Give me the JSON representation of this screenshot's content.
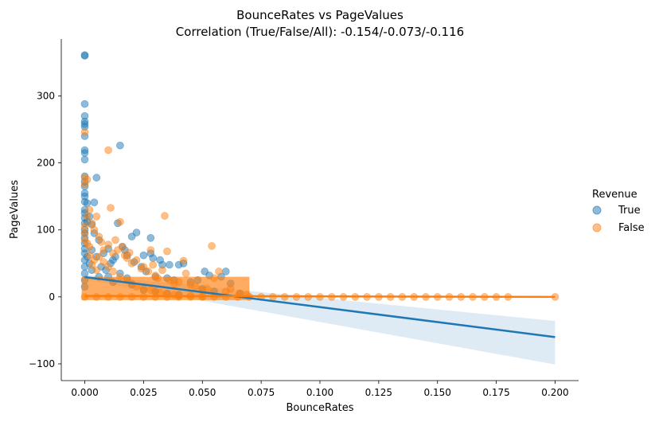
{
  "chart_data": {
    "type": "scatter",
    "title": "BounceRates vs PageValues",
    "subtitle": "Correlation (True/False/All): -0.154/-0.073/-0.116",
    "xlabel": "BounceRates",
    "ylabel": "PageValues",
    "xlim": [
      -0.01,
      0.21
    ],
    "ylim": [
      -125,
      385
    ],
    "xticks": [
      0.0,
      0.025,
      0.05,
      0.075,
      0.1,
      0.125,
      0.15,
      0.175,
      0.2
    ],
    "xtick_labels": [
      "0.000",
      "0.025",
      "0.050",
      "0.075",
      "0.100",
      "0.125",
      "0.150",
      "0.175",
      "0.200"
    ],
    "yticks": [
      -100,
      0,
      100,
      200,
      300
    ],
    "ytick_labels": [
      "−100",
      "0",
      "100",
      "200",
      "300"
    ],
    "grid": false,
    "legend": {
      "title": "Revenue",
      "placement": "right"
    },
    "series": [
      {
        "name": "True",
        "color": "#1f77b4",
        "regression": {
          "x": [
            0.0,
            0.2
          ],
          "y": [
            29.5,
            -60
          ],
          "ci_upper": [
            33,
            -36
          ],
          "ci_lower": [
            26,
            -101
          ]
        },
        "points": [
          [
            0.0,
            361
          ],
          [
            0.0,
            360
          ],
          [
            0.0,
            288
          ],
          [
            0.0,
            270
          ],
          [
            0.0,
            262
          ],
          [
            0.0,
            258
          ],
          [
            0.0,
            254
          ],
          [
            0.0,
            240
          ],
          [
            0.0,
            219
          ],
          [
            0.0,
            215
          ],
          [
            0.0,
            205
          ],
          [
            0.0,
            180
          ],
          [
            0.0,
            172
          ],
          [
            0.0,
            165
          ],
          [
            0.0,
            155
          ],
          [
            0.0,
            150
          ],
          [
            0.0,
            142
          ],
          [
            0.0,
            130
          ],
          [
            0.0,
            125
          ],
          [
            0.0,
            118
          ],
          [
            0.0,
            110
          ],
          [
            0.0,
            100
          ],
          [
            0.0,
            95
          ],
          [
            0.0,
            88
          ],
          [
            0.0,
            80
          ],
          [
            0.0,
            72
          ],
          [
            0.0,
            65
          ],
          [
            0.0,
            55
          ],
          [
            0.0,
            45
          ],
          [
            0.0,
            35
          ],
          [
            0.0,
            25
          ],
          [
            0.0,
            15
          ],
          [
            0.001,
            140
          ],
          [
            0.001,
            112
          ],
          [
            0.002,
            120
          ],
          [
            0.003,
            108
          ],
          [
            0.004,
            141
          ],
          [
            0.005,
            178
          ],
          [
            0.004,
            95
          ],
          [
            0.006,
            85
          ],
          [
            0.003,
            70
          ],
          [
            0.005,
            60
          ],
          [
            0.008,
            65
          ],
          [
            0.01,
            72
          ],
          [
            0.012,
            55
          ],
          [
            0.011,
            50
          ],
          [
            0.013,
            60
          ],
          [
            0.014,
            110
          ],
          [
            0.015,
            226
          ],
          [
            0.016,
            75
          ],
          [
            0.017,
            70
          ],
          [
            0.018,
            62
          ],
          [
            0.02,
            90
          ],
          [
            0.021,
            52
          ],
          [
            0.022,
            96
          ],
          [
            0.024,
            45
          ],
          [
            0.025,
            62
          ],
          [
            0.026,
            38
          ],
          [
            0.028,
            88
          ],
          [
            0.028,
            65
          ],
          [
            0.029,
            58
          ],
          [
            0.03,
            30
          ],
          [
            0.032,
            55
          ],
          [
            0.033,
            48
          ],
          [
            0.035,
            28
          ],
          [
            0.036,
            48
          ],
          [
            0.038,
            25
          ],
          [
            0.04,
            48
          ],
          [
            0.042,
            50
          ],
          [
            0.045,
            22
          ],
          [
            0.048,
            25
          ],
          [
            0.05,
            12
          ],
          [
            0.051,
            38
          ],
          [
            0.053,
            32
          ],
          [
            0.055,
            8
          ],
          [
            0.058,
            30
          ],
          [
            0.06,
            38
          ],
          [
            0.062,
            20
          ],
          [
            0.066,
            5
          ],
          [
            0.01,
            30
          ],
          [
            0.012,
            22
          ],
          [
            0.015,
            35
          ],
          [
            0.018,
            28
          ],
          [
            0.02,
            18
          ],
          [
            0.025,
            10
          ],
          [
            0.03,
            8
          ],
          [
            0.035,
            5
          ],
          [
            0.04,
            3
          ],
          [
            0.007,
            45
          ],
          [
            0.009,
            40
          ],
          [
            0.006,
            30
          ],
          [
            0.002,
            50
          ],
          [
            0.001,
            60
          ],
          [
            0.003,
            40
          ]
        ]
      },
      {
        "name": "False",
        "color": "#ff7f0e",
        "regression": {
          "x": [
            0.0,
            0.2
          ],
          "y": [
            1.5,
            0
          ],
          "ci_upper": [
            2.2,
            0.6
          ],
          "ci_lower": [
            0.8,
            -0.6
          ]
        },
        "points": [
          [
            0.0,
            246
          ],
          [
            0.0,
            178
          ],
          [
            0.0,
            168
          ],
          [
            0.001,
            175
          ],
          [
            0.002,
            130
          ],
          [
            0.001,
            120
          ],
          [
            0.0,
            105
          ],
          [
            0.0,
            95
          ],
          [
            0.0,
            85
          ],
          [
            0.001,
            80
          ],
          [
            0.002,
            75
          ],
          [
            0.003,
            110
          ],
          [
            0.005,
            120
          ],
          [
            0.004,
            100
          ],
          [
            0.006,
            90
          ],
          [
            0.007,
            82
          ],
          [
            0.008,
            70
          ],
          [
            0.01,
            219
          ],
          [
            0.01,
            78
          ],
          [
            0.011,
            133
          ],
          [
            0.012,
            65
          ],
          [
            0.013,
            85
          ],
          [
            0.014,
            70
          ],
          [
            0.015,
            112
          ],
          [
            0.016,
            75
          ],
          [
            0.017,
            62
          ],
          [
            0.018,
            58
          ],
          [
            0.019,
            66
          ],
          [
            0.02,
            50
          ],
          [
            0.022,
            55
          ],
          [
            0.024,
            42
          ],
          [
            0.025,
            45
          ],
          [
            0.027,
            38
          ],
          [
            0.028,
            70
          ],
          [
            0.029,
            48
          ],
          [
            0.03,
            32
          ],
          [
            0.031,
            28
          ],
          [
            0.033,
            40
          ],
          [
            0.034,
            121
          ],
          [
            0.035,
            68
          ],
          [
            0.036,
            25
          ],
          [
            0.038,
            20
          ],
          [
            0.04,
            22
          ],
          [
            0.042,
            54
          ],
          [
            0.043,
            35
          ],
          [
            0.045,
            18
          ],
          [
            0.047,
            15
          ],
          [
            0.05,
            10
          ],
          [
            0.052,
            12
          ],
          [
            0.054,
            76
          ],
          [
            0.055,
            28
          ],
          [
            0.057,
            38
          ],
          [
            0.06,
            8
          ],
          [
            0.062,
            12
          ],
          [
            0.066,
            5
          ],
          [
            0.069,
            3
          ],
          [
            0.01,
            45
          ],
          [
            0.012,
            38
          ],
          [
            0.008,
            52
          ],
          [
            0.006,
            60
          ],
          [
            0.004,
            55
          ],
          [
            0.002,
            62
          ],
          [
            0.003,
            48
          ],
          [
            0.005,
            40
          ],
          [
            0.015,
            30
          ],
          [
            0.018,
            25
          ],
          [
            0.02,
            20
          ],
          [
            0.022,
            15
          ],
          [
            0.025,
            12
          ],
          [
            0.028,
            10
          ],
          [
            0.03,
            8
          ],
          [
            0.032,
            6
          ],
          [
            0.035,
            4
          ],
          [
            0.038,
            3
          ],
          [
            0.04,
            2
          ],
          [
            0.045,
            2
          ],
          [
            0.05,
            1
          ]
        ]
      }
    ],
    "baseline": {
      "note": "dense band of points near PageValues 0 across BounceRates",
      "x": [
        0.0,
        0.005,
        0.01,
        0.015,
        0.02,
        0.025,
        0.03,
        0.035,
        0.04,
        0.045,
        0.05,
        0.055,
        0.06,
        0.065,
        0.07,
        0.075,
        0.08,
        0.085,
        0.09,
        0.095,
        0.1,
        0.105,
        0.11,
        0.115,
        0.12,
        0.125,
        0.13,
        0.135,
        0.14,
        0.145,
        0.15,
        0.155,
        0.16,
        0.165,
        0.17,
        0.175,
        0.18,
        0.2
      ]
    }
  }
}
